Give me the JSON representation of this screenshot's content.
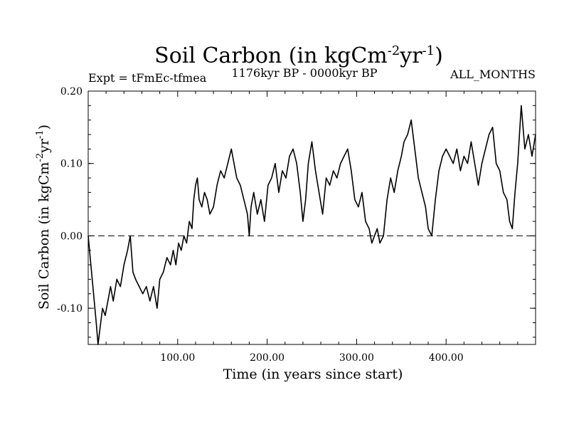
{
  "chart_data": {
    "type": "line",
    "title": {
      "base": "Soil Carbon (in kgCm",
      "sup1": "-2",
      "mid": "yr",
      "sup2": "-1",
      "end": ")"
    },
    "experiment_label": "Expt = tFmEc-tfmea",
    "period_label": "1176kyr BP - 0000kyr BP",
    "season_label": "ALL_MONTHS",
    "xlabel": "Time (in years since start)",
    "ylabel": {
      "base": "Soil Carbon (in kgCm",
      "sup1": "-2",
      "mid": "yr",
      "sup2": "-1",
      "end": ")"
    },
    "xlim": [
      0,
      500
    ],
    "ylim": [
      -0.15,
      0.2
    ],
    "xticks": [
      {
        "value": 100,
        "label": "100.00"
      },
      {
        "value": 200,
        "label": "200.00"
      },
      {
        "value": 300,
        "label": "300.00"
      },
      {
        "value": 400,
        "label": "400.00"
      }
    ],
    "yticks": [
      {
        "value": 0.2,
        "label": "0.20"
      },
      {
        "value": 0.1,
        "label": "0.10"
      },
      {
        "value": 0.0,
        "label": "0.00"
      },
      {
        "value": -0.1,
        "label": "-0.10"
      }
    ],
    "reference_line": {
      "y": 0.0,
      "style": "dashed"
    },
    "series": [
      {
        "name": "Soil Carbon",
        "x": [
          0,
          3,
          6,
          9,
          11,
          13,
          16,
          19,
          22,
          25,
          28,
          32,
          36,
          40,
          44,
          47,
          50,
          53,
          57,
          61,
          65,
          69,
          73,
          77,
          80,
          84,
          88,
          92,
          95,
          98,
          101,
          104,
          107,
          110,
          113,
          116,
          118,
          120,
          122,
          124,
          127,
          130,
          133,
          136,
          140,
          144,
          148,
          152,
          156,
          160,
          163,
          166,
          170,
          174,
          178,
          180,
          182,
          185,
          189,
          193,
          197,
          201,
          205,
          209,
          213,
          217,
          221,
          225,
          229,
          233,
          237,
          240,
          243,
          246,
          250,
          254,
          258,
          262,
          266,
          270,
          274,
          278,
          282,
          286,
          290,
          294,
          298,
          302,
          306,
          310,
          314,
          317,
          320,
          323,
          326,
          330,
          334,
          338,
          342,
          346,
          350,
          353,
          357,
          361,
          365,
          369,
          373,
          377,
          380,
          384,
          388,
          392,
          396,
          400,
          404,
          408,
          412,
          416,
          420,
          424,
          428,
          432,
          436,
          440,
          444,
          448,
          452,
          456,
          460,
          464,
          468,
          471,
          474,
          477,
          480,
          484,
          488,
          492,
          496,
          500
        ],
        "values": [
          0.0,
          -0.04,
          -0.08,
          -0.12,
          -0.15,
          -0.13,
          -0.1,
          -0.11,
          -0.09,
          -0.07,
          -0.09,
          -0.06,
          -0.07,
          -0.04,
          -0.02,
          0.0,
          -0.05,
          -0.06,
          -0.07,
          -0.08,
          -0.07,
          -0.09,
          -0.07,
          -0.1,
          -0.06,
          -0.05,
          -0.03,
          -0.04,
          -0.02,
          -0.04,
          -0.01,
          -0.02,
          0.0,
          -0.01,
          0.02,
          0.01,
          0.05,
          0.07,
          0.08,
          0.05,
          0.04,
          0.06,
          0.05,
          0.03,
          0.04,
          0.07,
          0.09,
          0.08,
          0.1,
          0.12,
          0.1,
          0.08,
          0.07,
          0.05,
          0.03,
          0.0,
          0.04,
          0.06,
          0.03,
          0.05,
          0.02,
          0.07,
          0.08,
          0.1,
          0.06,
          0.09,
          0.08,
          0.11,
          0.12,
          0.1,
          0.06,
          0.02,
          0.05,
          0.1,
          0.13,
          0.09,
          0.06,
          0.03,
          0.08,
          0.07,
          0.09,
          0.08,
          0.1,
          0.11,
          0.12,
          0.09,
          0.05,
          0.04,
          0.06,
          0.02,
          0.01,
          -0.01,
          0.0,
          0.01,
          -0.01,
          0.0,
          0.05,
          0.08,
          0.06,
          0.09,
          0.11,
          0.13,
          0.14,
          0.16,
          0.12,
          0.08,
          0.06,
          0.04,
          0.01,
          0.0,
          0.05,
          0.09,
          0.11,
          0.12,
          0.11,
          0.1,
          0.12,
          0.09,
          0.11,
          0.1,
          0.13,
          0.1,
          0.07,
          0.1,
          0.12,
          0.14,
          0.15,
          0.1,
          0.09,
          0.06,
          0.05,
          0.02,
          0.01,
          0.06,
          0.1,
          0.18,
          0.12,
          0.14,
          0.11,
          0.14
        ]
      }
    ]
  }
}
